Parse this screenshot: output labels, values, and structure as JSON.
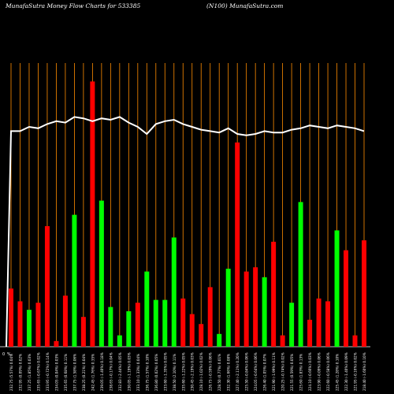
{
  "header": {
    "left_title": "MunafaSutra  Money Flow  Charts for 533385",
    "right_title": "(N100) MunafaSutra.com"
  },
  "chart_data": {
    "type": "bar",
    "title": "MunafaSutra  Money Flow  Charts for 533385",
    "subtitle": "(N100) MunafaSutra.com",
    "xlabel": "",
    "ylabel": "",
    "ylim": [
      0,
      100
    ],
    "grid": true,
    "legend": "none",
    "y_tick_labels": [
      "0",
      "%"
    ],
    "colors": {
      "up": "#00ff00",
      "down": "#ff0000",
      "line": "#ffffff",
      "grid": "#ff8c00",
      "background": "#000000"
    },
    "categories": [
      "232.75 (5.57%) 0.04%",
      "232.95 (0.09%) 0.02%",
      "237.25 (1.85%) 0.03%",
      "235.65 (-0.67%) 0.02%",
      "233.95 (-0.72%) 0.14%",
      "234.05 (0.04%) 0.03%",
      "235.65 (0.68%) 0.11%",
      "237.75 (1.58%) 0.06%",
      "238.25 (0.21%) 0.04%",
      "242.45 (1.76%) 0.35%",
      "239.05 (-1.40%) 0.18%",
      "238.65 (-0.17%) 0.04%",
      "232.83 (-2.44%) 0.05%",
      "230.05 (-1.19%) 0.03%",
      "233.10 (1.33%) 0.04%",
      "236.75 (1.57%) 0.10%",
      "236.80 (0.02%) 0.05%",
      "233.60 (-1.35%) 0.05%",
      "238.50 (2.10%) 0.11%",
      "235.60 (-1.22%) 0.05%",
      "230.45 (-2.19%) 0.03%",
      "228.10 (-1.02%) 0.02%",
      "226.75 (-0.59%) 0.06%",
      "228.50 (0.77%) 0.01%",
      "232.30 (1.66%) 0.08%",
      "227.40 (-2.11%) 0.20%",
      "225.50 (-0.84%) 0.06%",
      "224.05 (-0.64%) 0.06%",
      "226.40 (1.05%) 0.07%",
      "221.90 (-1.99%) 0.11%",
      "220.25 (-0.74%) 0.02%",
      "221.55 (0.59%) 0.05%",
      "225.60 (1.83%) 0.13%",
      "224.10 (-0.66%) 0.03%",
      "223.90 (-0.09%) 0.06%",
      "222.60 (-0.58%) 0.06%",
      "225.45 (1.28%) 0.10%",
      "222.30 (-1.40%) 0.09%",
      "221.95 (-0.16%) 0.02%",
      "218.40 (-1.60%) 0.10%"
    ],
    "values": [
      20.5,
      16.0,
      13.0,
      15.5,
      42.5,
      2.0,
      18.0,
      46.5,
      10.5,
      93.5,
      51.5,
      14.0,
      4.0,
      12.5,
      15.5,
      26.5,
      16.5,
      16.5,
      38.5,
      17.0,
      11.5,
      8.0,
      21.0,
      4.5,
      27.5,
      72.0,
      26.5,
      28.0,
      24.5,
      37.0,
      4.0,
      15.5,
      51.0,
      9.5,
      17.0,
      16.0,
      41.0,
      34.0,
      4.0,
      37.5
    ],
    "directions": [
      "down",
      "down",
      "up",
      "down",
      "down",
      "down",
      "down",
      "up",
      "down",
      "down",
      "up",
      "up",
      "up",
      "up",
      "down",
      "up",
      "up",
      "up",
      "up",
      "down",
      "down",
      "down",
      "down",
      "up",
      "up",
      "down",
      "down",
      "down",
      "up",
      "down",
      "down",
      "up",
      "up",
      "down",
      "down",
      "down",
      "up",
      "down",
      "down",
      "down"
    ],
    "line_values": [
      76.0,
      76.0,
      77.5,
      77.0,
      78.5,
      79.5,
      79.0,
      81.0,
      80.5,
      79.5,
      80.5,
      80.0,
      81.0,
      79.0,
      77.5,
      75.0,
      78.5,
      79.5,
      80.0,
      78.5,
      77.5,
      76.5,
      76.0,
      75.5,
      77.0,
      75.0,
      74.5,
      75.0,
      76.0,
      75.5,
      75.5,
      76.5,
      77.0,
      78.0,
      77.5,
      77.0,
      78.0,
      77.5,
      77.0,
      76.0
    ],
    "line_start": 0
  }
}
